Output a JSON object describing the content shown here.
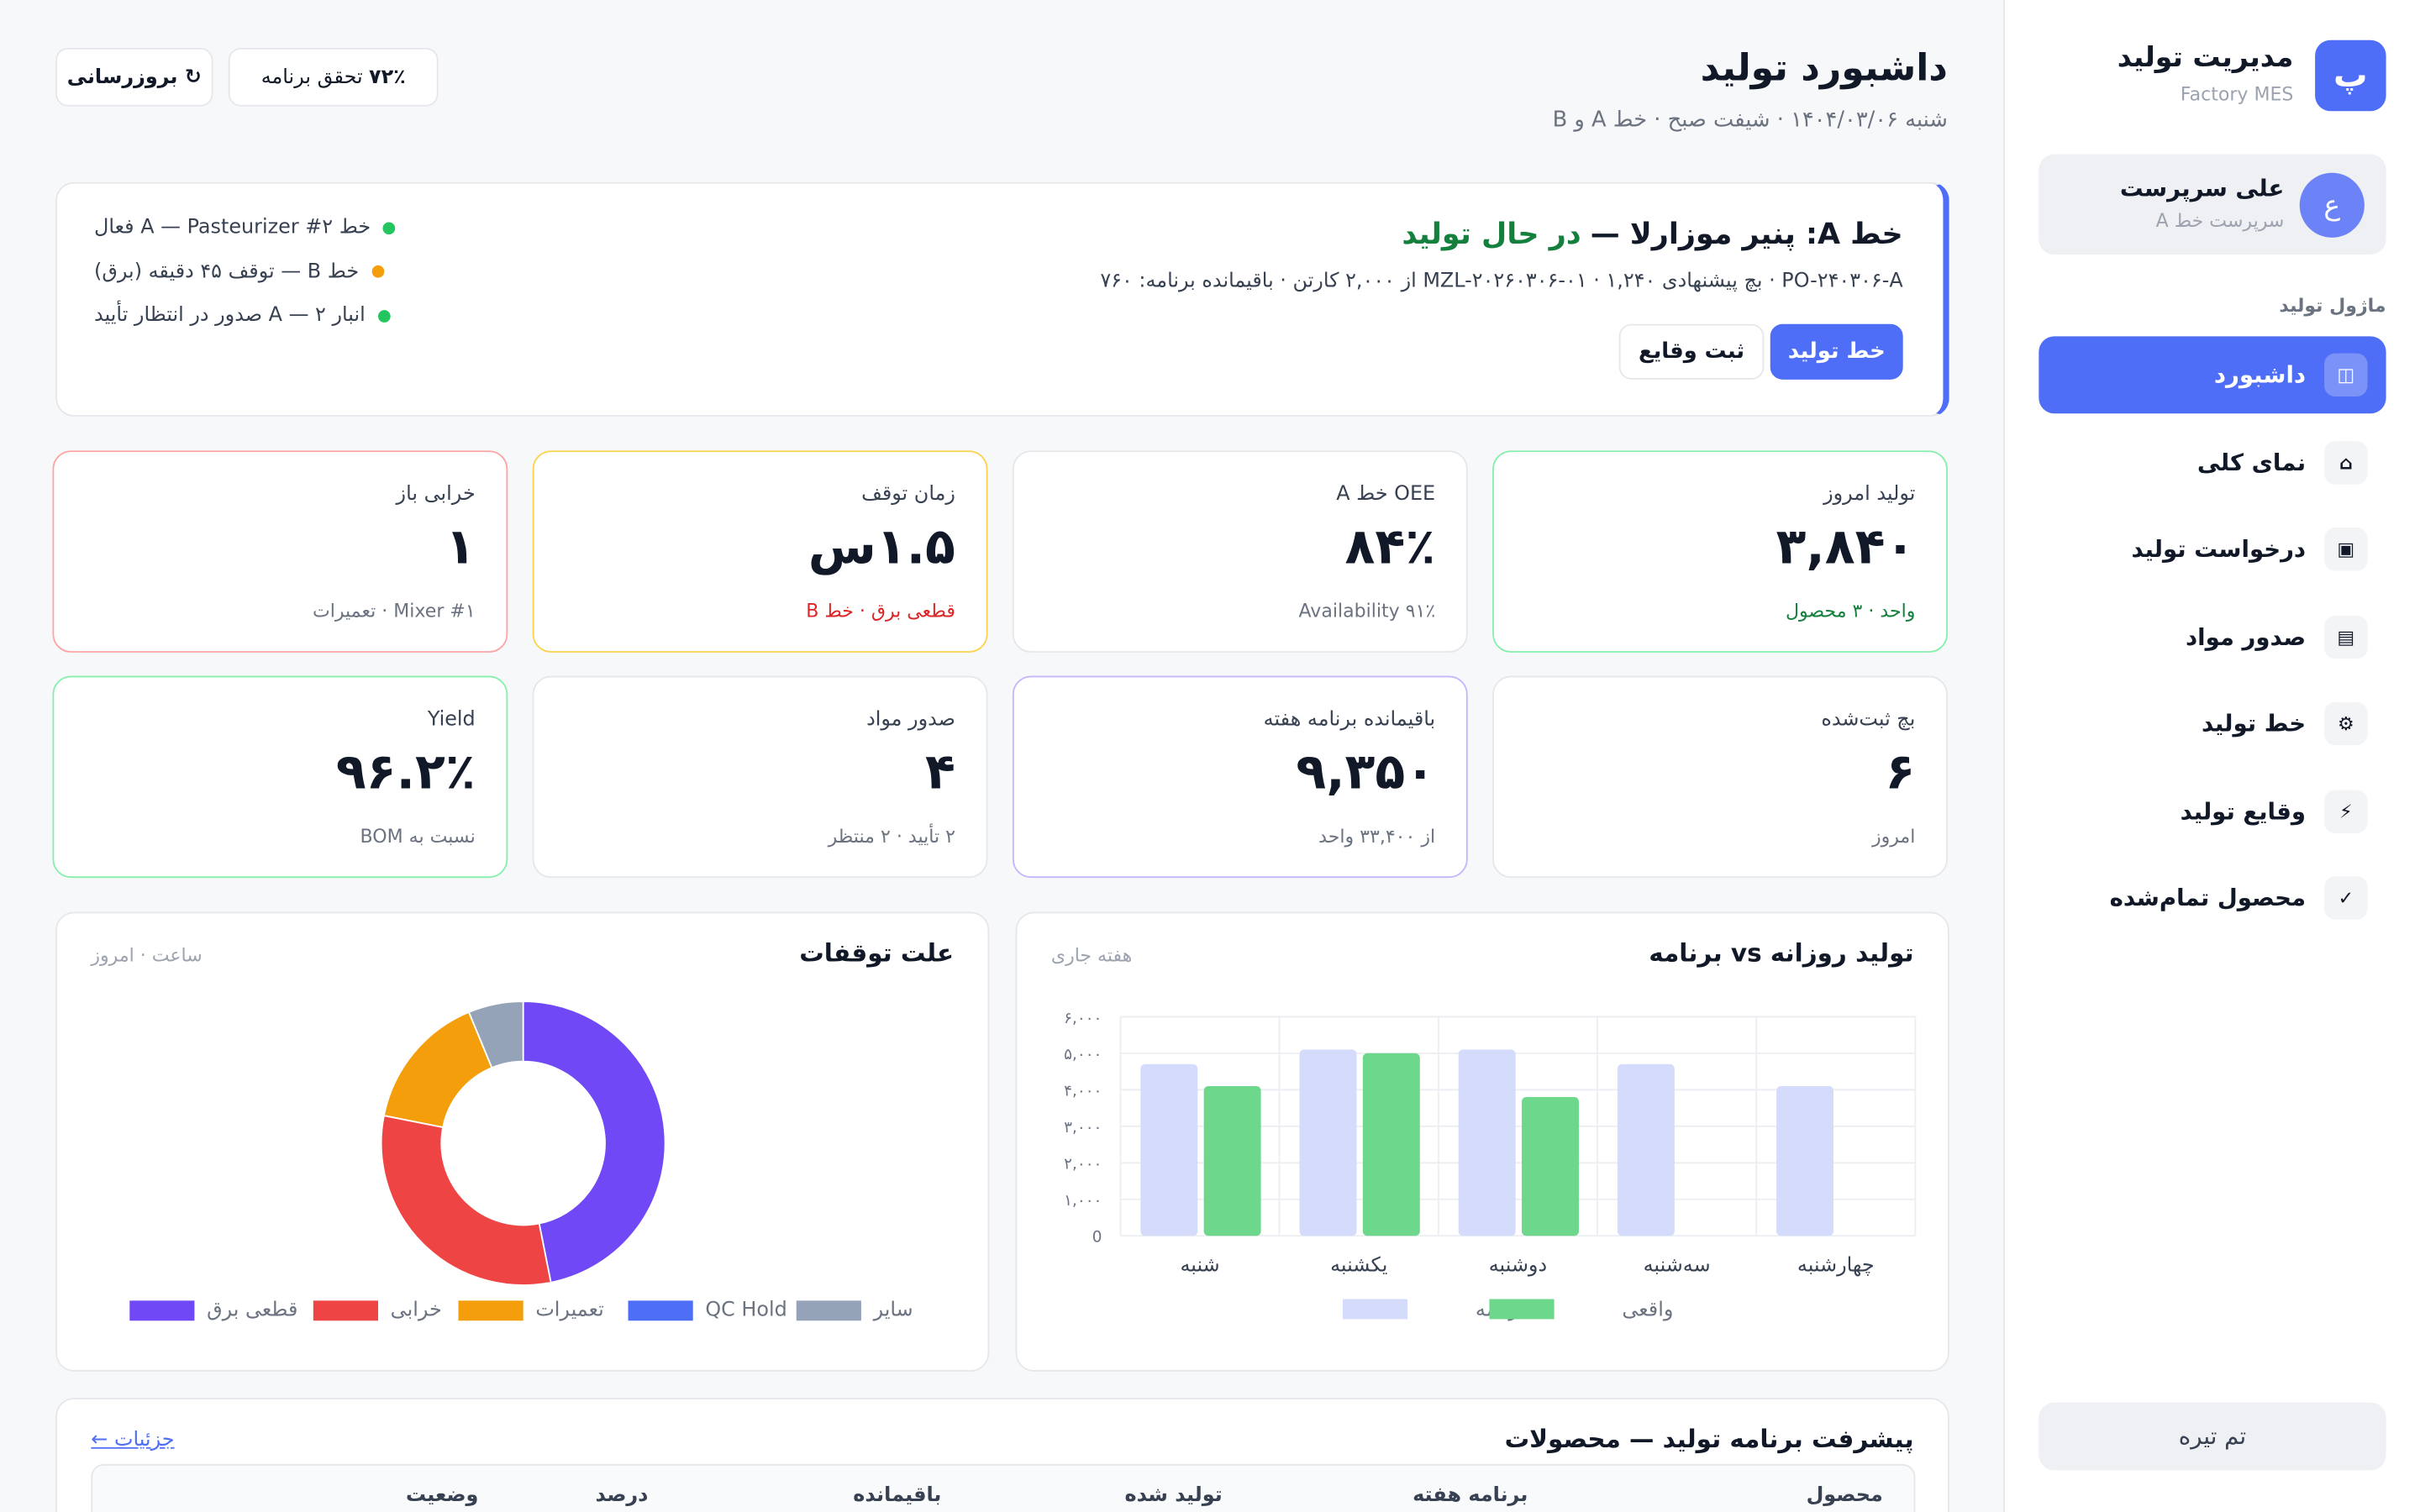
{
  "sidebar": {
    "logo": "پ",
    "title": "مدیریت تولید",
    "subtitle": "Factory MES",
    "user": {
      "avatar": "ع",
      "name": "علی سرپرست",
      "role": "سرپرست خط A"
    },
    "section": "ماژول تولید",
    "nav": [
      {
        "icon": "◫",
        "label": "داشبورد"
      },
      {
        "icon": "⌂",
        "label": "نمای کلی"
      },
      {
        "icon": "▣",
        "label": "درخواست تولید"
      },
      {
        "icon": "▤",
        "label": "صدور مواد"
      },
      {
        "icon": "⚙",
        "label": "خط تولید"
      },
      {
        "icon": "⚡",
        "label": "وقایع تولید"
      },
      {
        "icon": "✓",
        "label": "محصول تمام‌شده"
      }
    ],
    "theme_button": "تم تیره"
  },
  "header": {
    "title": "داشبورد تولید",
    "subtitle": "شنبه ۱۴۰۴/۰۳/۰۶ · شیفت صبح · خط A و B",
    "badge_value": "۷۲٪",
    "badge_label": "تحقق برنامه",
    "refresh": "↻ بروزرسانی"
  },
  "banner": {
    "title": "خط A: پنیر موزارلا —",
    "status": "در حال تولید",
    "detail": "PO-۲۴۰۳۰۶-A · بچ پیشنهادی MZL-۲۰۲۶۰۳۰۶-۰۱ · ۱,۲۴۰ از ۲,۰۰۰ کارتن · باقیمانده برنامه: ۷۶۰",
    "buttons": [
      "خط تولید",
      "ثبت وقایع"
    ],
    "alerts": [
      {
        "text": "خط A — Pasteurizer #۲ فعال",
        "color": "#22c55e"
      },
      {
        "text": "خط B — توقف ۴۵ دقیقه (برق)",
        "color": "#f59e0b"
      },
      {
        "text": "انبار ۲ — A صدور در انتظار تأیید",
        "color": "#22c55e"
      }
    ]
  },
  "kpis": [
    {
      "label": "تولید امروز",
      "value": "۳,۸۴۰",
      "note": "واحد · ۳ محصول",
      "border": "#86efac",
      "note_color": "#15803d"
    },
    {
      "label": "OEE خط A",
      "value": "۸۴٪",
      "note": "Availability ۹۱٪",
      "border": "#e5e7eb",
      "note_color": "#6b7280"
    },
    {
      "label": "زمان توقف",
      "value": "۱.۵س",
      "note": "قطعی برق · خط B",
      "border": "#fcd34d",
      "note_color": "#dc2626"
    },
    {
      "label": "خرابی باز",
      "value": "۱",
      "note": "Mixer #۱ · تعمیرات",
      "border": "#fca5a5",
      "note_color": "#6b7280"
    },
    {
      "label": "بچ ثبت‌شده",
      "value": "۶",
      "note": "امروز",
      "border": "#e5e7eb",
      "note_color": "#6b7280"
    },
    {
      "label": "باقیمانده برنامه هفته",
      "value": "۹,۳۵۰",
      "note": "از ۳۳,۴۰۰ واحد",
      "border": "#c4b5fd",
      "note_color": "#6b7280"
    },
    {
      "label": "صدور مواد",
      "value": "۴",
      "note": "۲ تأیید · ۲ منتظر",
      "border": "#e5e7eb",
      "note_color": "#6b7280"
    },
    {
      "label": "Yield",
      "value": "۹۶.۲٪",
      "note": "نسبت به BOM",
      "border": "#86efac",
      "note_color": "#6b7280"
    }
  ],
  "charts": [
    {
      "type": "bar",
      "title": "تولید روزانه vs برنامه",
      "subtitle": "هفته جاری",
      "categories": [
        "شنبه",
        "یکشنبه",
        "دوشنبه",
        "سه‌شنبه",
        "چهارشنبه"
      ],
      "series": [
        {
          "name": "برنامه",
          "color": "#d4dbfb",
          "values": [
            4700,
            5100,
            5100,
            4700,
            4100
          ]
        },
        {
          "name": "واقعی",
          "color": "#6dd88c",
          "values": [
            4100,
            5000,
            3800,
            null,
            null
          ]
        }
      ],
      "ylim": [
        0,
        6000
      ],
      "yticks": [
        0,
        {
          "value": 1000,
          "label": "۱,۰۰۰"
        },
        {
          "value": 2000,
          "label": "۲,۰۰۰"
        },
        {
          "value": 3000,
          "label": "۳,۰۰۰"
        },
        {
          "value": 4000,
          "label": "۴,۰۰۰"
        },
        {
          "value": 5000,
          "label": "۵,۰۰۰"
        },
        {
          "value": 6000,
          "label": "۶,۰۰۰"
        }
      ],
      "grid": true
    },
    {
      "type": "pie",
      "title": "علت توقفات",
      "subtitle": "ساعت · امروز",
      "categories": [
        "قطعی برق",
        "خرابی",
        "تعمیرات",
        "QC Hold",
        "سایر"
      ],
      "values": [
        0.75,
        0.5,
        0.25,
        0,
        0.1
      ],
      "colors": [
        "#7048f5",
        "#ef4444",
        "#f59e0b",
        "#4f6ef7",
        "#94a3b8"
      ],
      "donut": true
    }
  ],
  "table": {
    "title": "پیشرفت برنامه تولید — محصولات",
    "link": "جزئیات ←",
    "columns": [
      "محصول",
      "برنامه هفته",
      "تولید شده",
      "باقیمانده",
      "درصد",
      "وضعیت"
    ]
  }
}
